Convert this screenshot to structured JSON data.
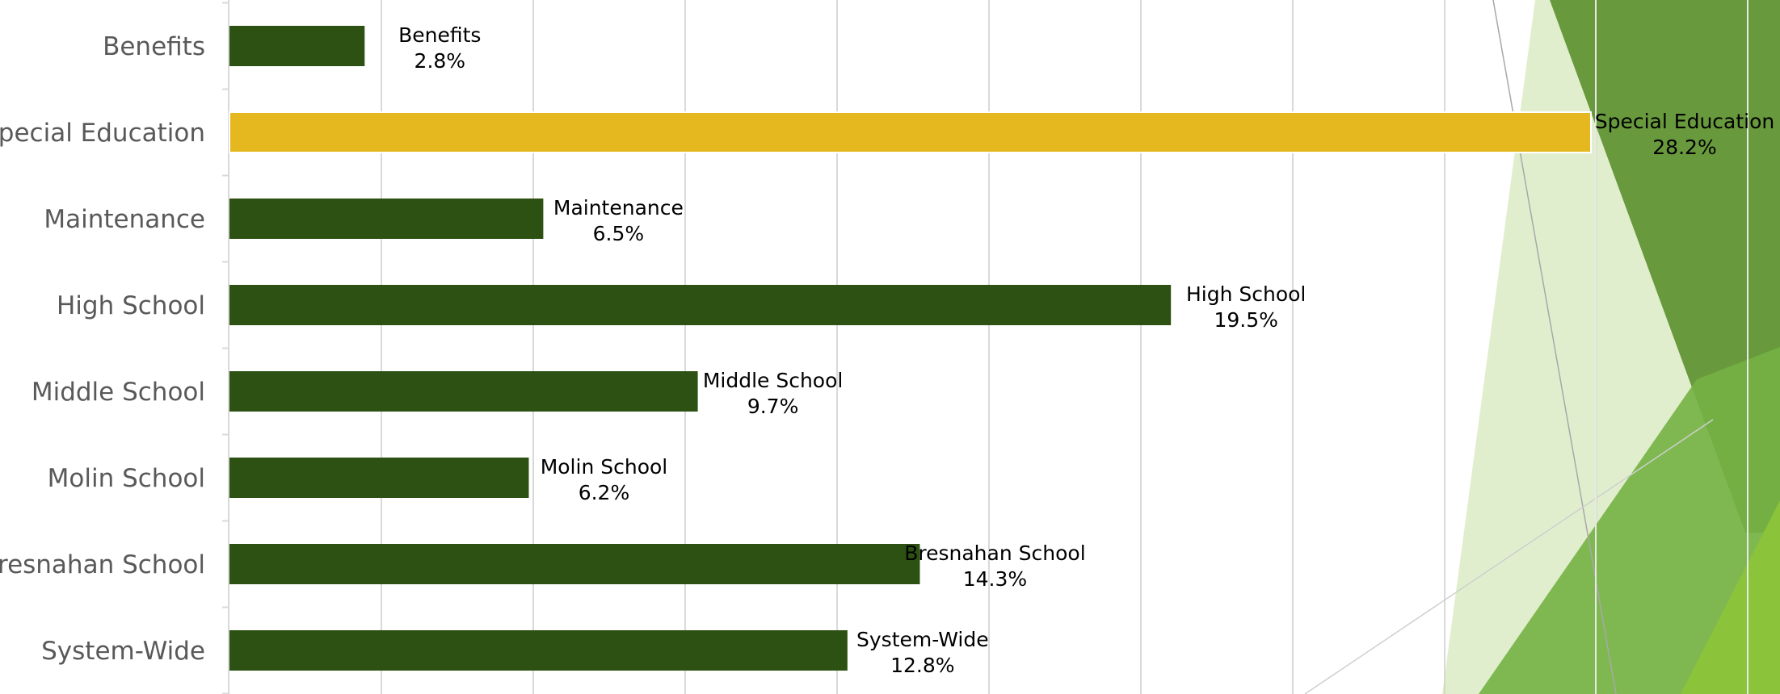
{
  "colors": {
    "bar": "#2c5112",
    "highlight": "#e6b820",
    "grid": "#d9d9d9",
    "axis_text": "#595959",
    "deco_dark": "#5b8f2e",
    "deco_mid": "#74b142",
    "deco_light": "#c9e0a4",
    "deco_lime": "#8bc43a"
  },
  "chart_data": {
    "type": "bar",
    "orientation": "horizontal",
    "title": "",
    "xlabel": "",
    "ylabel": "",
    "grid": true,
    "legend": "none",
    "categories": [
      "Benefits",
      "Special Education",
      "Maintenance",
      "High School",
      "Middle School",
      "Molin School",
      "Bresnahan School",
      "System-Wide"
    ],
    "values": [
      2.8,
      28.2,
      6.5,
      19.5,
      9.7,
      6.2,
      14.3,
      12.8
    ],
    "value_labels": [
      "2.8%",
      "28.2%",
      "6.5%",
      "19.5%",
      "9.7%",
      "6.2%",
      "14.3%",
      "12.8%"
    ],
    "highlighted_category": "Special Education",
    "xlim": [
      0,
      28.2
    ]
  }
}
